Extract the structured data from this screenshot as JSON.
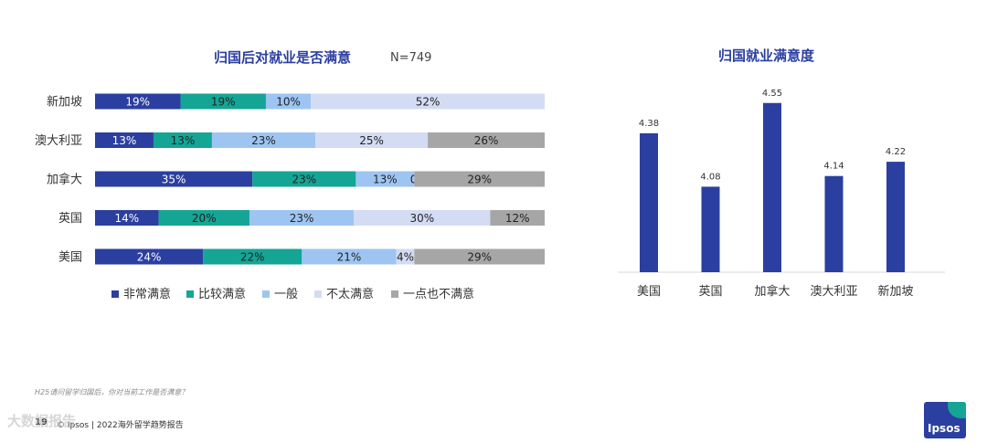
{
  "left_chart": {
    "title": "归国后对就业是否满意",
    "n_label": "N=749"
  },
  "right_chart": {
    "title": "归国就业满意度"
  },
  "footnote": "H25请问留学归国后，你对当前工作是否满意？",
  "footer": {
    "page_number": "19",
    "source": "© Ipsos | 2022海外留学趋势报告"
  },
  "logo_text": "Ipsos",
  "watermark": "大数据报告",
  "colors": {
    "very_satisfied": "#2b3fa0",
    "fairly_satisfied": "#14a595",
    "average": "#9ec5f2",
    "not_very": "#d3dcf3",
    "not_at_all": "#a6a6a6",
    "bar": "#2b3fa0",
    "title": "#2b3fa0"
  },
  "chart_data": [
    {
      "type": "bar",
      "orientation": "horizontal",
      "stacked": true,
      "title": "归国后对就业是否满意",
      "subtitle": "N=749",
      "categories": [
        "新加坡",
        "澳大利亚",
        "加拿大",
        "英国",
        "美国"
      ],
      "series": [
        {
          "name": "非常满意",
          "values": [
            19,
            13,
            35,
            14,
            24
          ],
          "labels": [
            "19%",
            "13%",
            "35%",
            "14%",
            "24%"
          ]
        },
        {
          "name": "比较满意",
          "values": [
            19,
            13,
            23,
            20,
            22
          ],
          "labels": [
            "19%",
            "13%",
            "23%",
            "20%",
            "22%"
          ]
        },
        {
          "name": "一般",
          "values": [
            10,
            23,
            13,
            23,
            21
          ],
          "labels": [
            "10%",
            "23%",
            "13%",
            "23%",
            "21%"
          ]
        },
        {
          "name": "不太满意",
          "values": [
            52,
            25,
            0,
            30,
            4
          ],
          "labels": [
            "52%",
            "25%",
            "0%",
            "30%",
            "4%"
          ]
        },
        {
          "name": "一点也不满意",
          "values": [
            0,
            26,
            29,
            12,
            29
          ],
          "labels": [
            "",
            "26%",
            "29%",
            "12%",
            "29%"
          ]
        }
      ],
      "legend": "bottom"
    },
    {
      "type": "bar",
      "title": "归国就业满意度",
      "categories": [
        "美国",
        "英国",
        "加拿大",
        "澳大利亚",
        "新加坡"
      ],
      "values": [
        4.38,
        4.08,
        4.55,
        4.14,
        4.22
      ],
      "value_labels": [
        "4.38",
        "4.08",
        "4.55",
        "4.14",
        "4.22"
      ],
      "ylim": [
        3.6,
        4.6
      ]
    }
  ]
}
